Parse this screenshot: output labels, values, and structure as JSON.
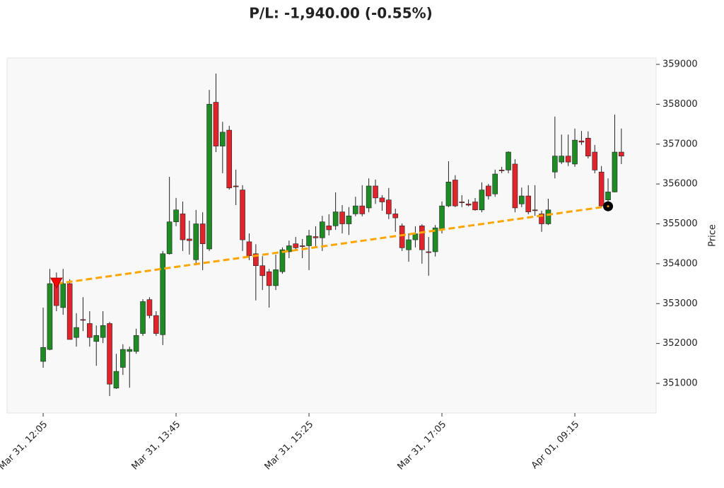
{
  "chart_data": {
    "type": "candlestick",
    "title": "P/L: -1,940.00 (-0.55%)",
    "y_label": "Price",
    "categories": [
      "Mar 31, 12:05",
      null,
      null,
      null,
      null,
      null,
      null,
      null,
      null,
      null,
      null,
      null,
      null,
      null,
      null,
      null,
      null,
      null,
      null,
      null,
      "Mar 31, 13:45",
      null,
      null,
      null,
      null,
      null,
      null,
      null,
      null,
      null,
      null,
      null,
      null,
      null,
      null,
      null,
      null,
      null,
      null,
      null,
      "Mar 31, 15:25",
      null,
      null,
      null,
      null,
      null,
      null,
      null,
      null,
      null,
      null,
      null,
      null,
      null,
      null,
      null,
      null,
      null,
      null,
      null,
      "Mar 31, 17:05",
      null,
      null,
      null,
      null,
      null,
      null,
      null,
      null,
      null,
      null,
      null,
      null,
      null,
      null,
      null,
      null,
      null,
      null,
      null,
      "Apr 01, 09:15",
      null,
      null,
      null,
      null,
      null,
      null,
      null
    ],
    "open": [
      351550,
      351850,
      353500,
      352900,
      353500,
      352150,
      352600,
      352500,
      352050,
      352150,
      352500,
      350880,
      351400,
      351800,
      351800,
      352250,
      353100,
      352700,
      352220,
      354250,
      355050,
      355250,
      354620,
      354100,
      355000,
      354370,
      358050,
      356950,
      357350,
      355950,
      355850,
      354550,
      354250,
      353950,
      353800,
      353450,
      353800,
      354300,
      354500,
      354450,
      354450,
      354680,
      354650,
      354950,
      354950,
      355300,
      355000,
      355250,
      355450,
      355400,
      355950,
      355650,
      355600,
      355250,
      354950,
      354350,
      354600,
      354950,
      354300,
      354300,
      354850,
      355450,
      356100,
      355550,
      355500,
      355550,
      355350,
      355950,
      355750,
      356350,
      356350,
      356500,
      355500,
      355700,
      355350,
      355250,
      355000,
      356300,
      356550,
      356700,
      356500,
      357080,
      357150,
      356800,
      356300,
      355600,
      355800,
      356800
    ],
    "high": [
      352900,
      353870,
      353780,
      353870,
      353610,
      352760,
      353160,
      352810,
      352450,
      352810,
      352540,
      351740,
      351980,
      351920,
      352370,
      353110,
      353160,
      352810,
      354320,
      356180,
      355650,
      355560,
      355080,
      355350,
      355290,
      358360,
      358770,
      357560,
      357460,
      356360,
      355970,
      354760,
      354490,
      354190,
      353870,
      354230,
      354410,
      354580,
      354670,
      354620,
      354850,
      354940,
      355200,
      355240,
      355790,
      355470,
      355420,
      355680,
      355970,
      356140,
      356110,
      355720,
      355900,
      355380,
      355010,
      354760,
      354940,
      354990,
      354670,
      354970,
      355560,
      356570,
      356220,
      355720,
      355610,
      355650,
      356040,
      356000,
      356360,
      356430,
      356820,
      356620,
      355910,
      355970,
      355970,
      355330,
      355630,
      357690,
      357240,
      357240,
      357390,
      357330,
      357320,
      356980,
      356450,
      356140,
      357740,
      357390
    ],
    "low": [
      351390,
      351830,
      352810,
      352720,
      352100,
      351920,
      352310,
      351920,
      351440,
      352010,
      350680,
      350860,
      351210,
      350890,
      351740,
      352190,
      352630,
      352190,
      351960,
      354230,
      354940,
      354320,
      354230,
      353960,
      353840,
      354320,
      356800,
      356270,
      355860,
      355470,
      354320,
      354090,
      353080,
      353340,
      352900,
      353340,
      353750,
      354140,
      354320,
      354140,
      353840,
      354410,
      354320,
      354710,
      354850,
      354760,
      354720,
      355190,
      355190,
      355290,
      355500,
      355330,
      355120,
      354800,
      354320,
      354050,
      354410,
      354000,
      353700,
      354180,
      354760,
      355420,
      355420,
      355420,
      355440,
      355330,
      355290,
      355610,
      355680,
      356270,
      356270,
      355290,
      355420,
      355240,
      355200,
      354800,
      354970,
      356140,
      356500,
      356450,
      356430,
      356980,
      356640,
      356270,
      355420,
      355560,
      355790,
      356500
    ],
    "close": [
      351900,
      353500,
      352950,
      353500,
      352100,
      352400,
      352580,
      352150,
      352200,
      352450,
      350980,
      351300,
      351850,
      351850,
      352200,
      353050,
      352700,
      352250,
      354250,
      355050,
      355350,
      354600,
      354580,
      355000,
      354500,
      358000,
      356950,
      357300,
      355900,
      355930,
      354600,
      354200,
      353950,
      353700,
      353450,
      353850,
      354350,
      354450,
      354400,
      354430,
      354700,
      354650,
      355050,
      354850,
      355300,
      355000,
      355200,
      355450,
      355250,
      355950,
      355650,
      355550,
      355250,
      355150,
      354400,
      354600,
      354750,
      354350,
      354280,
      354900,
      355450,
      356050,
      355450,
      355530,
      355470,
      355350,
      355850,
      355700,
      356250,
      356330,
      356800,
      355400,
      355700,
      355300,
      355330,
      355000,
      355350,
      356700,
      356700,
      356550,
      357100,
      357050,
      356700,
      356350,
      355450,
      355800,
      356800,
      356700
    ],
    "up_color": "#1f8b24",
    "down_color": "#e0242c",
    "trade": {
      "entry_index": 2,
      "entry_price": 353500,
      "exit_index": 85,
      "exit_price": 355440,
      "line_color": "#ffa500",
      "entry_color": "#ff0000",
      "exit_color": "#000000"
    },
    "xlim": [
      -5.43,
      92.23
    ],
    "ylim": [
      350255,
      359160
    ],
    "yticks": [
      351000,
      352000,
      353000,
      354000,
      355000,
      356000,
      357000,
      358000,
      359000
    ]
  }
}
